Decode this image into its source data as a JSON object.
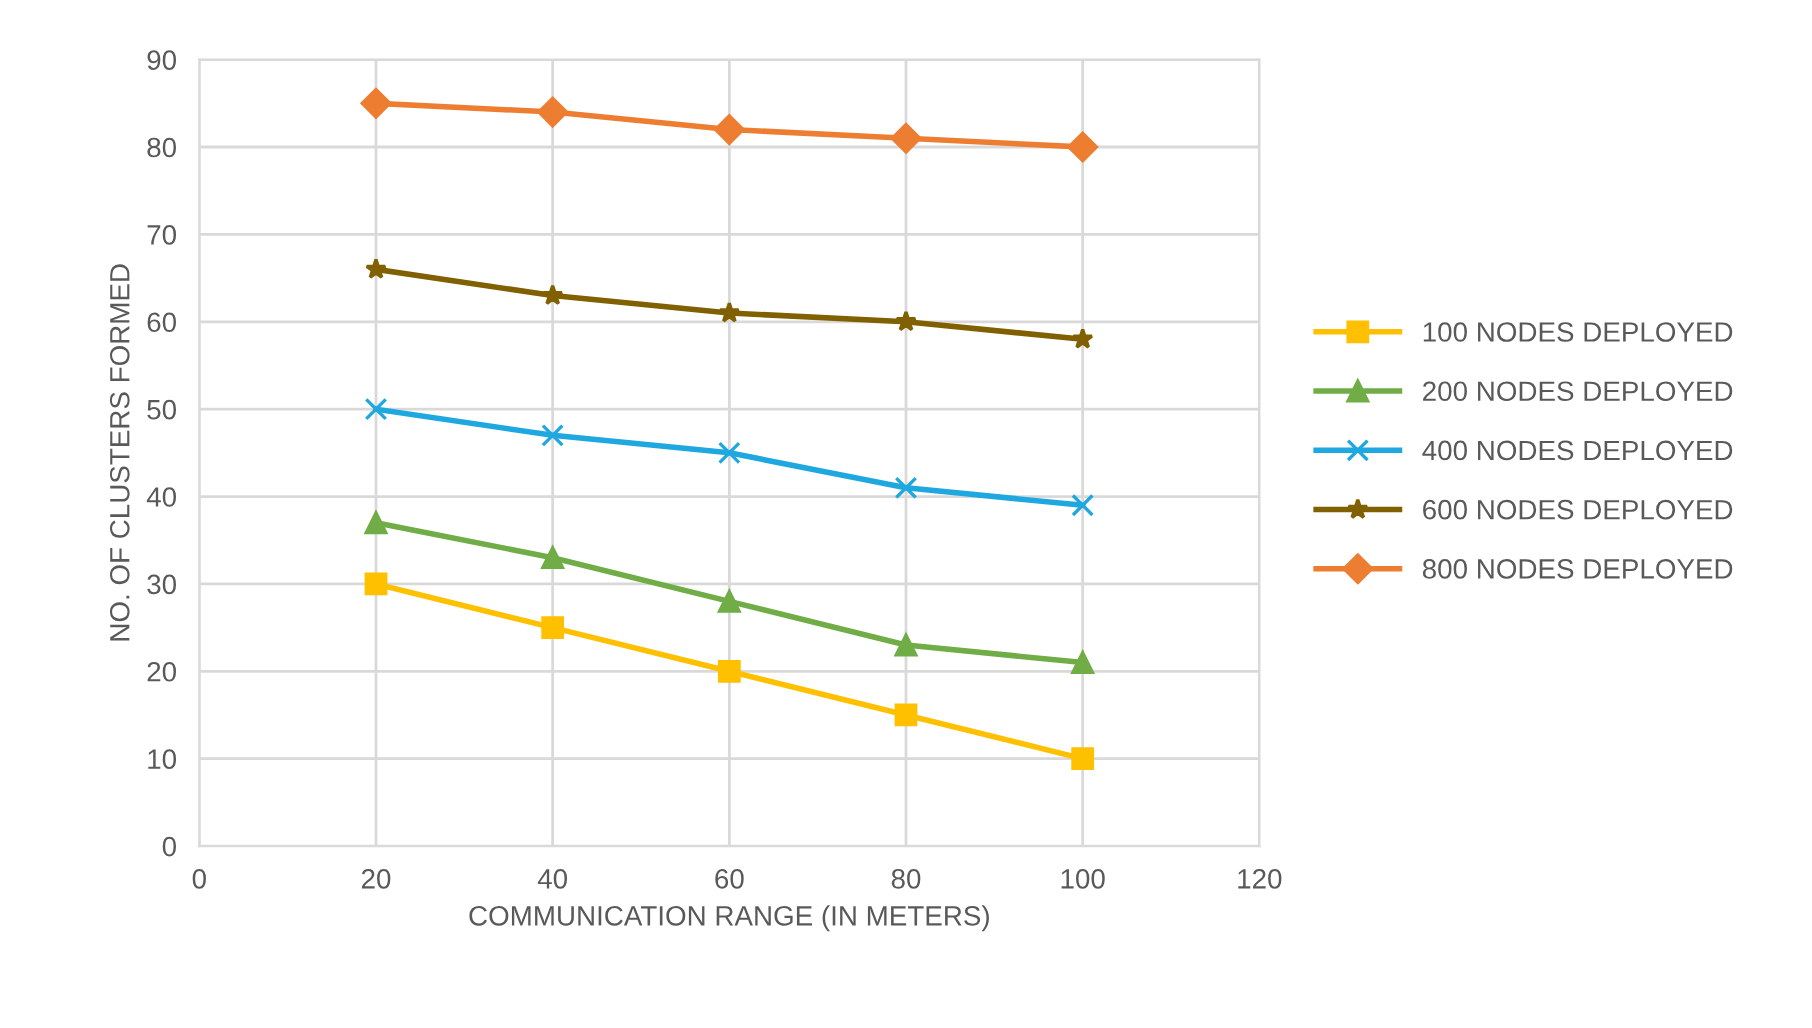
{
  "chart_data": {
    "type": "line",
    "xlabel": "COMMUNICATION RANGE (IN METERS)",
    "ylabel": "NO. OF CLUSTERS FORMED",
    "x": [
      20,
      40,
      60,
      80,
      100
    ],
    "series": [
      {
        "name": "100 NODES DEPLOYED",
        "color": "#ffc000",
        "marker": "square",
        "values": [
          30,
          25,
          20,
          15,
          10
        ]
      },
      {
        "name": "200 NODES DEPLOYED",
        "color": "#70ad47",
        "marker": "triangle",
        "values": [
          37,
          33,
          28,
          23,
          21
        ]
      },
      {
        "name": "400 NODES DEPLOYED",
        "color": "#1fa8e0",
        "marker": "cross",
        "values": [
          50,
          47,
          45,
          41,
          39
        ]
      },
      {
        "name": "600 NODES DEPLOYED",
        "color": "#806000",
        "marker": "star",
        "values": [
          66,
          63,
          61,
          60,
          58
        ]
      },
      {
        "name": "800 NODES DEPLOYED",
        "color": "#ed7d31",
        "marker": "diamond",
        "values": [
          85,
          84,
          82,
          81,
          80
        ]
      }
    ],
    "xlim": [
      0,
      120
    ],
    "xticks": [
      0,
      20,
      40,
      60,
      80,
      100,
      120
    ],
    "ylim": [
      0,
      90
    ],
    "yticks": [
      0,
      10,
      20,
      30,
      40,
      50,
      60,
      70,
      80,
      90
    ],
    "grid": true,
    "legend": "right",
    "line_style": "solid"
  }
}
